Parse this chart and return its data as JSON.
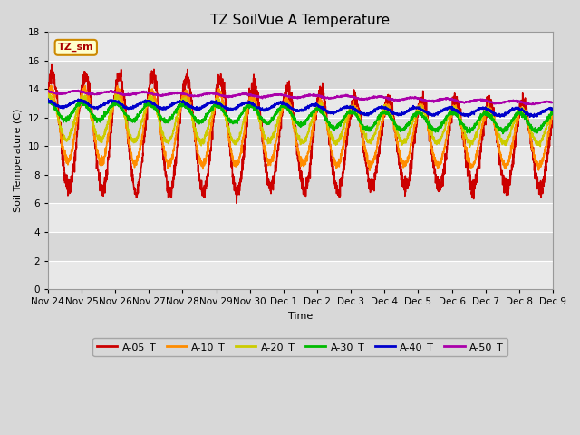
{
  "title": "TZ SoilVue A Temperature",
  "xlabel": "Time",
  "ylabel": "Soil Temperature (C)",
  "ylim": [
    0,
    18
  ],
  "yticks": [
    0,
    2,
    4,
    6,
    8,
    10,
    12,
    14,
    16,
    18
  ],
  "series": {
    "A-05_T": {
      "color": "#cc0000",
      "lw": 1.2
    },
    "A-10_T": {
      "color": "#ff8c00",
      "lw": 1.2
    },
    "A-20_T": {
      "color": "#cccc00",
      "lw": 1.2
    },
    "A-30_T": {
      "color": "#00bb00",
      "lw": 1.2
    },
    "A-40_T": {
      "color": "#0000cc",
      "lw": 1.2
    },
    "A-50_T": {
      "color": "#aa00aa",
      "lw": 1.2
    }
  },
  "annotation_text": "TZ_sm",
  "annotation_bg": "#ffffcc",
  "annotation_border": "#cc8800",
  "fig_bg": "#d8d8d8",
  "plot_bg_light": "#e8e8e8",
  "plot_bg_dark": "#d0d0d0",
  "grid_color": "#ffffff",
  "title_fontsize": 11,
  "axis_fontsize": 8,
  "tick_fontsize": 7.5,
  "legend_fontsize": 8,
  "x_tick_labels": [
    "Nov 24",
    "Nov 25",
    "Nov 26",
    "Nov 27",
    "Nov 28",
    "Nov 29",
    "Nov 30",
    "Dec 1",
    "Dec 2",
    "Dec 3",
    "Dec 4",
    "Dec 5",
    "Dec 6",
    "Dec 7",
    "Dec 8",
    "Dec 9"
  ]
}
